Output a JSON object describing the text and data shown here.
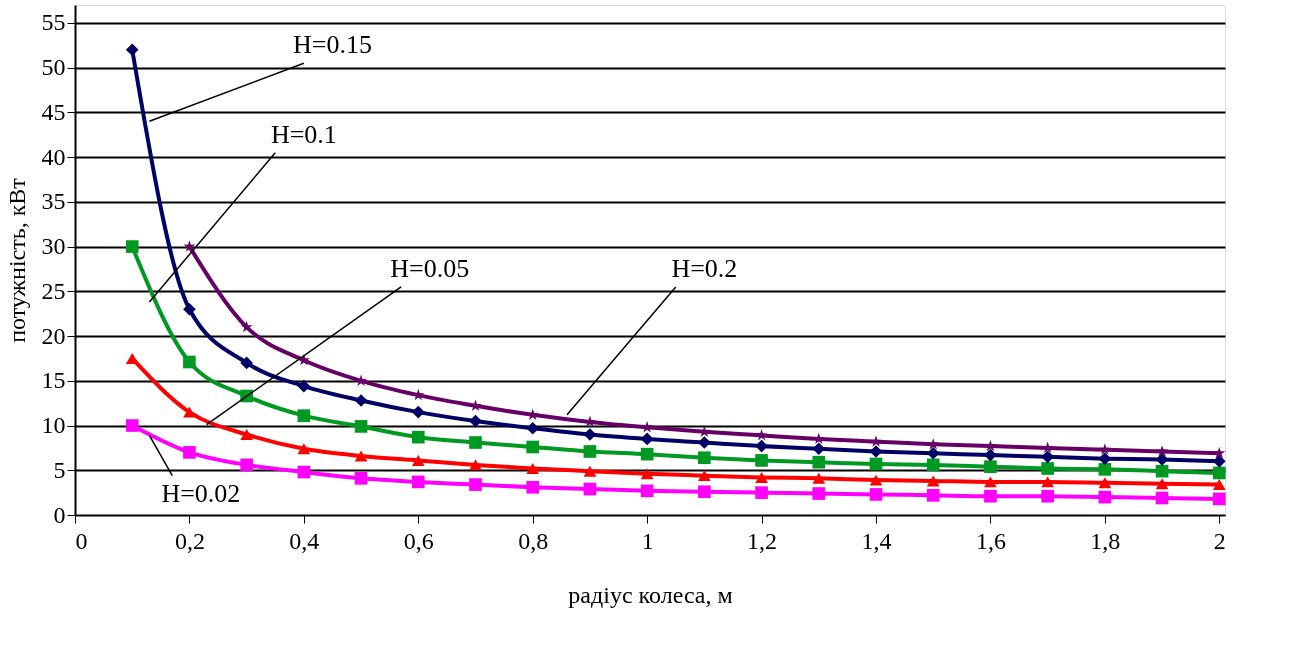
{
  "chart_data": {
    "type": "line",
    "xlabel": "радіус колеса, м",
    "ylabel": "потужність, кВт",
    "xlim": [
      0,
      2.01
    ],
    "ylim": [
      0,
      57
    ],
    "xticks": [
      0,
      {
        "value": 0.2,
        "label": "0,2"
      },
      {
        "value": 0.4,
        "label": "0,4"
      },
      {
        "value": 0.6,
        "label": "0,6"
      },
      {
        "value": 0.8,
        "label": "0,8"
      },
      1,
      {
        "value": 1.2,
        "label": "1,2"
      },
      {
        "value": 1.4,
        "label": "1,4"
      },
      {
        "value": 1.6,
        "label": "1,6"
      },
      {
        "value": 1.8,
        "label": "1,8"
      },
      2
    ],
    "yticks": [
      0,
      5,
      10,
      15,
      20,
      25,
      30,
      35,
      40,
      45,
      50,
      55
    ],
    "grid": "y",
    "x": [
      0.1,
      0.2,
      0.3,
      0.4,
      0.5,
      0.6,
      0.7,
      0.8,
      0.9,
      1.0,
      1.1,
      1.2,
      1.3,
      1.4,
      1.5,
      1.6,
      1.7,
      1.8,
      1.9,
      2.0
    ],
    "series": [
      {
        "color": "#ff00ff",
        "marker": "square",
        "values": [
          10,
          7,
          5.6,
          4.8,
          4.1,
          3.7,
          3.4,
          3.1,
          2.9,
          2.7,
          2.6,
          2.5,
          2.4,
          2.3,
          2.2,
          2.1,
          2.1,
          2.0,
          1.9,
          1.8
        ]
      },
      {
        "color": "#ff0000",
        "marker": "triangle",
        "values": [
          17.5,
          11.5,
          9,
          7.4,
          6.6,
          6.1,
          5.6,
          5.2,
          4.9,
          4.6,
          4.4,
          4.2,
          4.1,
          3.9,
          3.8,
          3.7,
          3.7,
          3.6,
          3.5,
          3.4
        ]
      },
      {
        "color": "#009922",
        "marker": "square",
        "values": [
          30,
          17.1,
          13.3,
          11.1,
          9.9,
          8.7,
          8.1,
          7.6,
          7.1,
          6.8,
          6.4,
          6.1,
          5.9,
          5.7,
          5.6,
          5.4,
          5.2,
          5.1,
          4.9,
          4.7
        ]
      },
      {
        "color": "#000066",
        "marker": "diamond",
        "values": [
          52,
          23,
          17,
          14.4,
          12.8,
          11.5,
          10.5,
          9.7,
          9.0,
          8.5,
          8.1,
          7.7,
          7.4,
          7.1,
          6.9,
          6.7,
          6.5,
          6.3,
          6.2,
          6.0
        ]
      },
      {
        "color": "#660066",
        "marker": "star",
        "values": [
          null,
          30,
          21,
          17.3,
          15,
          13.4,
          12.2,
          11.2,
          10.4,
          9.8,
          9.3,
          8.9,
          8.5,
          8.2,
          7.9,
          7.7,
          7.5,
          7.3,
          7.1,
          6.9
        ]
      }
    ],
    "annotations": [
      {
        "text": "H=0.15",
        "x": 0.13,
        "y": 44
      },
      {
        "text": "H=0.1",
        "x": 0.13,
        "y": 23.8
      },
      {
        "text": "H=0.05",
        "x": 0.23,
        "y": 10.1
      },
      {
        "text": "H=0.02",
        "x": 0.13,
        "y": 8.9
      },
      {
        "text": "H=0.2",
        "x": 0.86,
        "y": 11.2
      }
    ]
  }
}
